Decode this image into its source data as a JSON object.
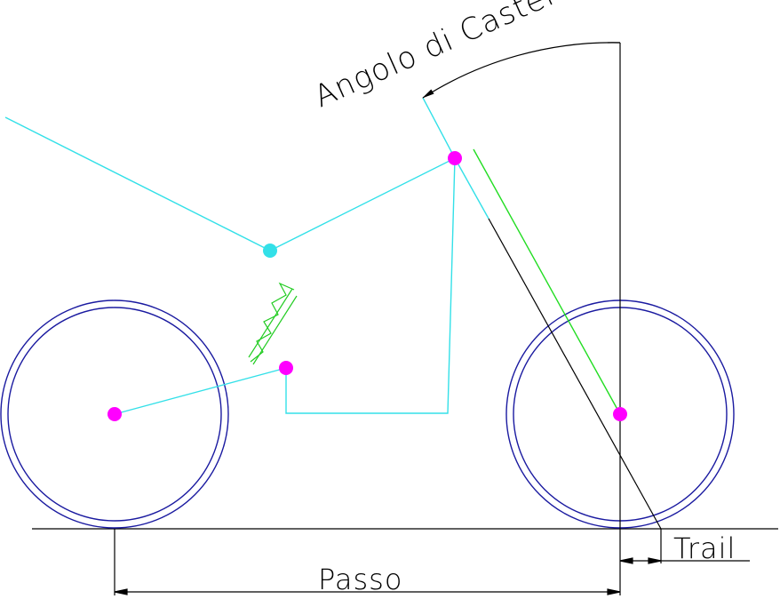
{
  "labels": {
    "caster_angle": "Angolo di Caster",
    "wheelbase": "Passo",
    "trail": "Trail"
  },
  "colors": {
    "frame": "#33e0e8",
    "wheel": "#1a1aa0",
    "pivot": "#ff00ff",
    "spring": "#22cc22",
    "fork": "#22dd22",
    "dimension": "#000000",
    "background": "#ffffff"
  }
}
